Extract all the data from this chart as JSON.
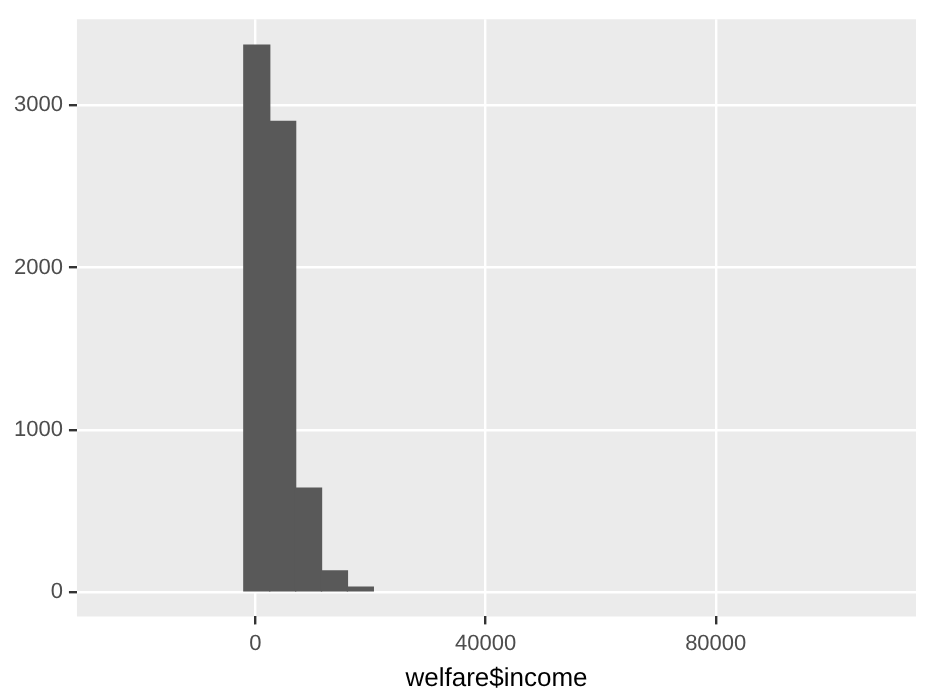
{
  "chart_data": {
    "type": "histogram",
    "xlabel": "welfare$income",
    "bins": [
      -2000,
      2500,
      7000,
      11500,
      16000,
      20500
    ],
    "values": [
      3370,
      2900,
      640,
      130,
      30
    ],
    "color": "#595959",
    "xlim": [
      -31000,
      114800
    ],
    "xticks": [
      0,
      40000,
      80000
    ],
    "ylim": [
      -150,
      3530
    ],
    "yticks": [
      0,
      1000,
      2000,
      3000
    ],
    "grid": true,
    "legend": false
  }
}
